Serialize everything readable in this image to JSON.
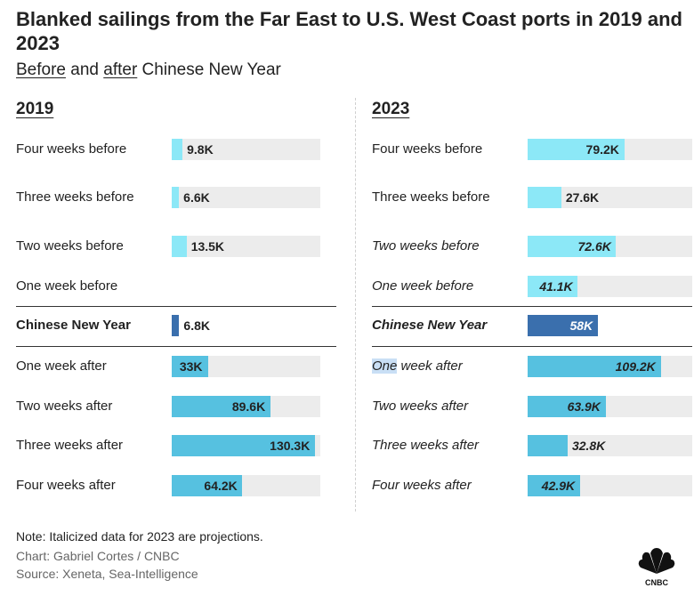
{
  "title": "Blanked sailings from the Far East to U.S. West Coast ports in 2019 and 2023",
  "subtitle": {
    "before": "Before",
    "and": " and ",
    "after": "after",
    "rest": " Chinese New Year"
  },
  "colors": {
    "light_cyan": "#8ce8f7",
    "medium_blue": "#56c1e0",
    "dark_blue": "#3a6fad",
    "track": "#ececec"
  },
  "chart_data": [
    {
      "type": "bar",
      "title": "2019",
      "xlim": [
        0,
        135
      ],
      "unit": "K",
      "rows": [
        {
          "label": "Four weeks before",
          "value": 9.8,
          "text": "9.8K",
          "color": "light_cyan",
          "italic": false,
          "bold": false
        },
        {
          "label": "Three weeks before",
          "value": 6.6,
          "text": "6.6K",
          "color": "light_cyan",
          "italic": false,
          "bold": false
        },
        {
          "label": "Two weeks before",
          "value": 13.5,
          "text": "13.5K",
          "color": "light_cyan",
          "italic": false,
          "bold": false
        },
        {
          "label": "One week before",
          "value": null,
          "text": "",
          "color": "light_cyan",
          "italic": false,
          "bold": false
        },
        {
          "label": "Chinese New Year",
          "value": 6.8,
          "text": "6.8K",
          "color": "dark_blue",
          "italic": false,
          "bold": true
        },
        {
          "label": "One week after",
          "value": 33,
          "text": "33K",
          "color": "medium_blue",
          "italic": false,
          "bold": false
        },
        {
          "label": "Two weeks after",
          "value": 89.6,
          "text": "89.6K",
          "color": "medium_blue",
          "italic": false,
          "bold": false
        },
        {
          "label": "Three weeks after",
          "value": 130.3,
          "text": "130.3K",
          "color": "medium_blue",
          "italic": false,
          "bold": false
        },
        {
          "label": "Four weeks after",
          "value": 64.2,
          "text": "64.2K",
          "color": "medium_blue",
          "italic": false,
          "bold": false
        }
      ]
    },
    {
      "type": "bar",
      "title": "2023",
      "xlim": [
        0,
        135
      ],
      "unit": "K",
      "rows": [
        {
          "label": "Four weeks before",
          "value": 79.2,
          "text": "79.2K",
          "color": "light_cyan",
          "italic": false,
          "bold": false
        },
        {
          "label": "Three weeks before",
          "value": 27.6,
          "text": "27.6K",
          "color": "light_cyan",
          "italic": false,
          "bold": false
        },
        {
          "label": "Two weeks before",
          "value": 72.6,
          "text": "72.6K",
          "color": "light_cyan",
          "italic": true,
          "bold": false
        },
        {
          "label": "One week before",
          "value": 41.1,
          "text": "41.1K",
          "color": "light_cyan",
          "italic": true,
          "bold": false
        },
        {
          "label": "Chinese New Year",
          "value": 58,
          "text": "58K",
          "color": "dark_blue",
          "italic": true,
          "bold": true
        },
        {
          "label": "One week after",
          "value": 109.2,
          "text": "109.2K",
          "color": "medium_blue",
          "italic": true,
          "bold": false
        },
        {
          "label": "Two weeks after",
          "value": 63.9,
          "text": "63.9K",
          "color": "medium_blue",
          "italic": true,
          "bold": false
        },
        {
          "label": "Three weeks after",
          "value": 32.8,
          "text": "32.8K",
          "color": "medium_blue",
          "italic": true,
          "bold": false
        },
        {
          "label": "Four weeks after",
          "value": 42.9,
          "text": "42.9K",
          "color": "medium_blue",
          "italic": true,
          "bold": false
        }
      ]
    }
  ],
  "footer": {
    "note": "Note: Italicized data for 2023 are projections.",
    "credit": "Chart: Gabriel Cortes / CNBC",
    "source": "Source: Xeneta, Sea-Intelligence",
    "logo_text": "CNBC"
  }
}
